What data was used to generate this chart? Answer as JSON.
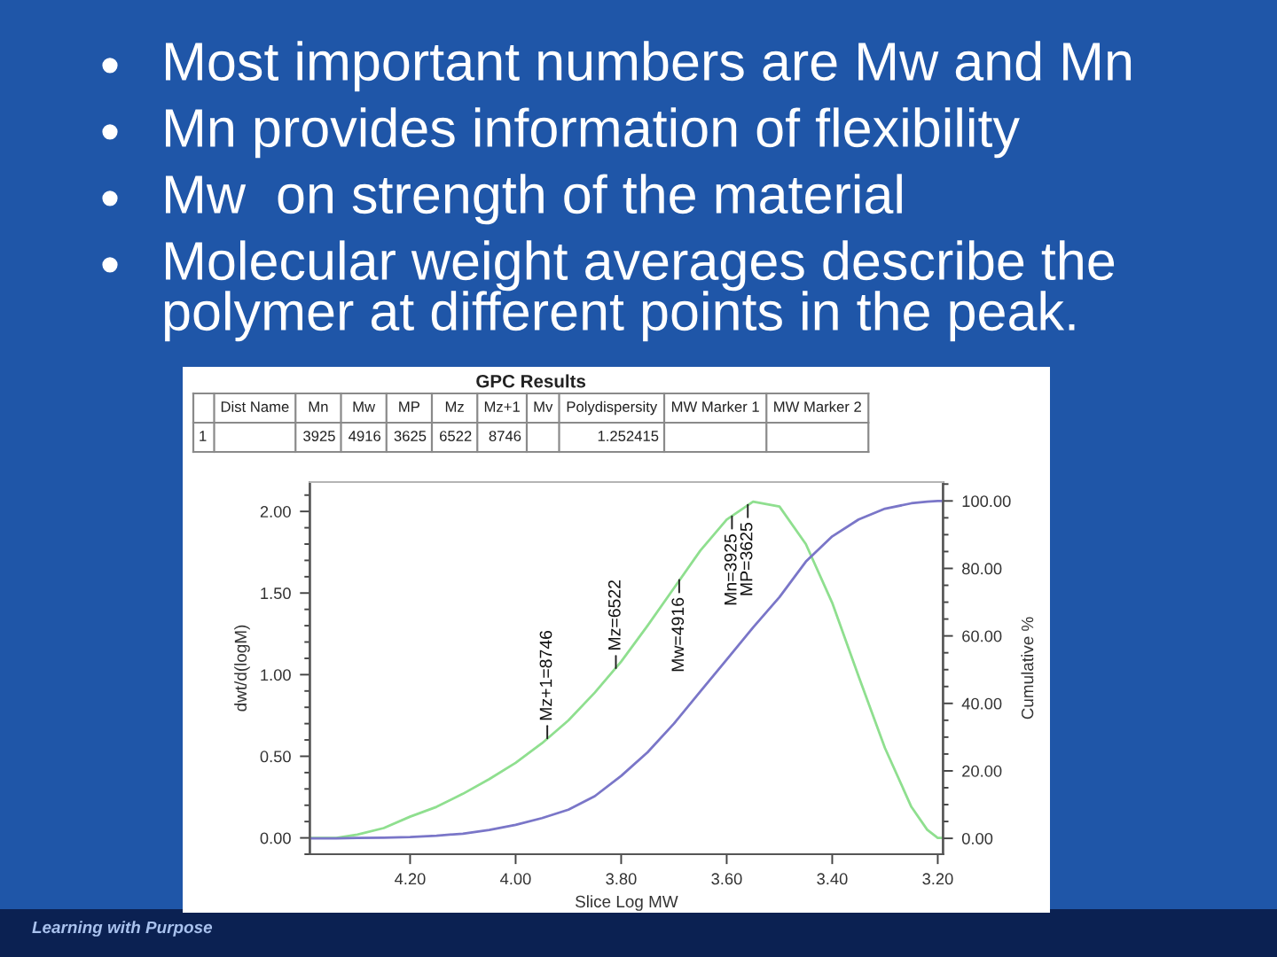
{
  "chart_data": [
    {
      "type": "other",
      "annotations": [
        "Most important numbers are Mw and Mn",
        "Mn provides information of flexibility",
        "Mw  on strength of the material",
        "Molecular weight averages describe the polymer at different points in the peak."
      ]
    },
    {
      "type": "other",
      "title": "GPC Results",
      "categories": [
        null,
        "Dist Name",
        "Mn",
        "Mw",
        "MP",
        "Mz",
        "Mz+1",
        "Mv",
        "Polydispersity",
        "MW Marker 1",
        "MW Marker 2"
      ],
      "values": [
        1,
        null,
        3925,
        4916,
        3625,
        6522,
        8746,
        null,
        1.252415,
        null,
        null
      ],
      "data_labels": true
    },
    {
      "type": "line",
      "xlabel": "Slice Log MW",
      "ylabel": "dwt/d(logM)",
      "y2label": "Cumulative %",
      "xlim": [
        4.39,
        3.19
      ],
      "xticks": [
        {
          "value": 4.2,
          "label": "4.20"
        },
        {
          "value": 4.0,
          "label": "4.00"
        },
        {
          "value": 3.8,
          "label": "3.80"
        },
        {
          "value": 3.6,
          "label": "3.60"
        },
        {
          "value": 3.4,
          "label": "3.40"
        },
        {
          "value": 3.2,
          "label": "3.20"
        }
      ],
      "ylim": [
        -0.1,
        2.18
      ],
      "yticks": [
        {
          "value": 0,
          "label": "0.00"
        },
        {
          "value": 0.5,
          "label": "0.50"
        },
        {
          "value": 1,
          "label": "1.00"
        },
        {
          "value": 1.5,
          "label": "1.50"
        },
        {
          "value": 2,
          "label": "2.00"
        }
      ],
      "y2lim": [
        -4.7,
        105.6
      ],
      "y2ticks": [
        {
          "value": 0,
          "label": "0.00"
        },
        {
          "value": 20,
          "label": "20.00"
        },
        {
          "value": 40,
          "label": "40.00"
        },
        {
          "value": 60,
          "label": "60.00"
        },
        {
          "value": 80,
          "label": "80.00"
        },
        {
          "value": 100,
          "label": "100.00"
        }
      ],
      "series": [
        {
          "color": "#8fdf8f",
          "x": [
            4.39,
            4.34,
            4.3,
            4.25,
            4.2,
            4.15,
            4.1,
            4.05,
            4.0,
            3.95,
            3.9,
            3.85,
            3.8,
            3.75,
            3.7,
            3.65,
            3.6,
            3.55,
            3.5,
            3.45,
            3.4,
            3.35,
            3.3,
            3.25,
            3.22,
            3.2,
            3.19
          ],
          "values": [
            0.0,
            0.0,
            0.02,
            0.06,
            0.13,
            0.19,
            0.27,
            0.36,
            0.46,
            0.58,
            0.72,
            0.89,
            1.08,
            1.3,
            1.53,
            1.76,
            1.95,
            2.06,
            2.03,
            1.8,
            1.44,
            0.99,
            0.55,
            0.19,
            0.05,
            0.0,
            0.0
          ]
        },
        {
          "color": "#7a76c8",
          "axis": "y2",
          "x": [
            4.39,
            4.34,
            4.3,
            4.25,
            4.2,
            4.15,
            4.1,
            4.05,
            4.0,
            3.95,
            3.9,
            3.85,
            3.8,
            3.75,
            3.7,
            3.65,
            3.6,
            3.55,
            3.5,
            3.45,
            3.4,
            3.35,
            3.3,
            3.25,
            3.22,
            3.2,
            3.19
          ],
          "values": [
            0,
            0,
            0.1,
            0.2,
            0.4,
            0.8,
            1.4,
            2.5,
            4.0,
            6.0,
            8.5,
            12.5,
            18.5,
            25.5,
            34,
            43.5,
            53,
            62.5,
            71.5,
            82,
            89.5,
            94.5,
            97.7,
            99.3,
            99.8,
            100,
            100
          ]
        }
      ],
      "annotations": [
        {
          "text": "Mz+1=8746",
          "x": 3.94,
          "y": 0.61
        },
        {
          "text": "Mz=6522",
          "x": 3.81,
          "y": 1.04
        },
        {
          "text": "Mw=4916",
          "x": 3.69,
          "y": 1.58
        },
        {
          "text": "Mn=3925",
          "x": 3.59,
          "y": 1.97
        },
        {
          "text": "MP=3625",
          "x": 3.56,
          "y": 2.04
        }
      ]
    },
    {
      "type": "other",
      "annotations": [
        "Learning with Purpose"
      ]
    }
  ]
}
